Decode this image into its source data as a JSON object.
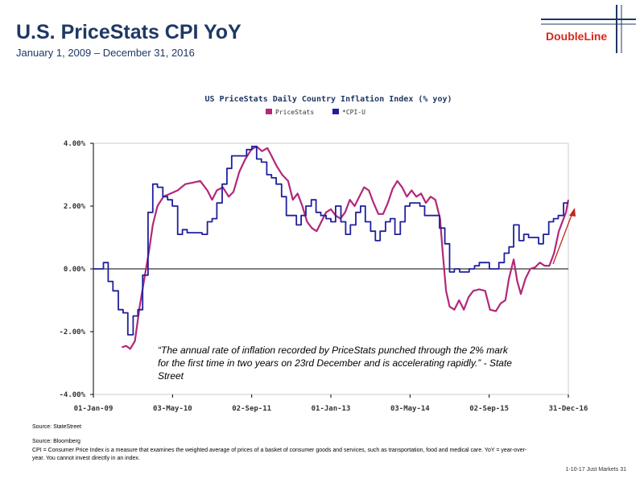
{
  "header": {
    "title": "U.S. PriceStats CPI YoY",
    "subtitle": "January 1, 2009 – December 31, 2016",
    "logo_text": "DoubleLine"
  },
  "colors": {
    "title": "#1f3864",
    "pricestats": "#b3277a",
    "cpi": "#1f1f9e",
    "logo": "#d9261c",
    "arrow": "#c0281c"
  },
  "quote": "“The annual rate of inflation recorded by PriceStats punched through the 2% mark for the first time in two years on 23rd December and is accelerating rapidly.”  - State Street",
  "source_chart": "Source: StateStreet",
  "source_main": "Source: Bloomberg",
  "note": "CPI = Consumer Price Index is a measure that examines the weighted average of prices of a basket of consumer goods and services, such as transportation, food and medical care.  YoY = year-over-year. You cannot invest directly in an index.",
  "footer": "1-10-17 Just Markets   31",
  "chart_data": {
    "type": "line",
    "title": "US PriceStats Daily Country Inflation Index (% yoy)",
    "x_tick_labels": [
      "01-Jan-09",
      "03-May-10",
      "02-Sep-11",
      "01-Jan-13",
      "03-May-14",
      "02-Sep-15",
      "31-Dec-16"
    ],
    "y_tick_labels": [
      "4.00%",
      "2.00%",
      "0.00%",
      "-2.00%",
      "-4.00%"
    ],
    "ylim": [
      -4,
      4
    ],
    "xlim": [
      2009.0,
      2017.0
    ],
    "grid": false,
    "legend": "top-center",
    "series": [
      {
        "name": "PriceStats",
        "color": "#b3277a",
        "points": [
          [
            2009.48,
            -2.5
          ],
          [
            2009.55,
            -2.45
          ],
          [
            2009.62,
            -2.55
          ],
          [
            2009.7,
            -2.3
          ],
          [
            2009.78,
            -1.2
          ],
          [
            2009.86,
            -0.3
          ],
          [
            2009.94,
            0.6
          ],
          [
            2010.0,
            1.4
          ],
          [
            2010.08,
            2.0
          ],
          [
            2010.18,
            2.3
          ],
          [
            2010.3,
            2.4
          ],
          [
            2010.42,
            2.5
          ],
          [
            2010.55,
            2.7
          ],
          [
            2010.68,
            2.75
          ],
          [
            2010.8,
            2.8
          ],
          [
            2010.92,
            2.5
          ],
          [
            2011.0,
            2.2
          ],
          [
            2011.08,
            2.5
          ],
          [
            2011.18,
            2.6
          ],
          [
            2011.28,
            2.3
          ],
          [
            2011.36,
            2.45
          ],
          [
            2011.46,
            3.1
          ],
          [
            2011.56,
            3.5
          ],
          [
            2011.66,
            3.8
          ],
          [
            2011.75,
            3.9
          ],
          [
            2011.84,
            3.75
          ],
          [
            2011.93,
            3.85
          ],
          [
            2012.0,
            3.6
          ],
          [
            2012.08,
            3.3
          ],
          [
            2012.18,
            3.0
          ],
          [
            2012.28,
            2.8
          ],
          [
            2012.36,
            2.2
          ],
          [
            2012.44,
            2.4
          ],
          [
            2012.52,
            2.0
          ],
          [
            2012.6,
            1.5
          ],
          [
            2012.68,
            1.3
          ],
          [
            2012.76,
            1.2
          ],
          [
            2012.84,
            1.5
          ],
          [
            2012.92,
            1.8
          ],
          [
            2013.0,
            1.9
          ],
          [
            2013.08,
            1.7
          ],
          [
            2013.16,
            1.6
          ],
          [
            2013.24,
            1.8
          ],
          [
            2013.32,
            2.2
          ],
          [
            2013.4,
            2.0
          ],
          [
            2013.48,
            2.3
          ],
          [
            2013.56,
            2.6
          ],
          [
            2013.64,
            2.5
          ],
          [
            2013.72,
            2.1
          ],
          [
            2013.8,
            1.75
          ],
          [
            2013.88,
            1.75
          ],
          [
            2013.96,
            2.1
          ],
          [
            2014.04,
            2.55
          ],
          [
            2014.12,
            2.8
          ],
          [
            2014.2,
            2.6
          ],
          [
            2014.28,
            2.3
          ],
          [
            2014.36,
            2.5
          ],
          [
            2014.44,
            2.3
          ],
          [
            2014.52,
            2.4
          ],
          [
            2014.6,
            2.1
          ],
          [
            2014.68,
            2.3
          ],
          [
            2014.76,
            2.2
          ],
          [
            2014.84,
            1.6
          ],
          [
            2014.88,
            0.6
          ],
          [
            2014.94,
            -0.7
          ],
          [
            2015.0,
            -1.2
          ],
          [
            2015.08,
            -1.3
          ],
          [
            2015.16,
            -1.0
          ],
          [
            2015.24,
            -1.3
          ],
          [
            2015.32,
            -0.9
          ],
          [
            2015.4,
            -0.7
          ],
          [
            2015.5,
            -0.65
          ],
          [
            2015.6,
            -0.7
          ],
          [
            2015.68,
            -1.3
          ],
          [
            2015.78,
            -1.35
          ],
          [
            2015.86,
            -1.1
          ],
          [
            2015.94,
            -1.0
          ],
          [
            2016.0,
            -0.3
          ],
          [
            2016.08,
            0.3
          ],
          [
            2016.14,
            -0.4
          ],
          [
            2016.2,
            -0.8
          ],
          [
            2016.28,
            -0.3
          ],
          [
            2016.36,
            0.0
          ],
          [
            2016.44,
            0.05
          ],
          [
            2016.52,
            0.2
          ],
          [
            2016.6,
            0.1
          ],
          [
            2016.68,
            0.1
          ],
          [
            2016.76,
            0.5
          ],
          [
            2016.84,
            1.2
          ],
          [
            2016.9,
            1.5
          ],
          [
            2016.96,
            1.8
          ],
          [
            2017.0,
            2.2
          ]
        ]
      },
      {
        "name": "*CPI-U",
        "color": "#1f1f9e",
        "points": [
          [
            2009.0,
            0.0
          ],
          [
            2009.08,
            0.0
          ],
          [
            2009.17,
            0.2
          ],
          [
            2009.25,
            -0.4
          ],
          [
            2009.33,
            -0.7
          ],
          [
            2009.42,
            -1.3
          ],
          [
            2009.5,
            -1.4
          ],
          [
            2009.58,
            -2.1
          ],
          [
            2009.67,
            -1.5
          ],
          [
            2009.75,
            -1.3
          ],
          [
            2009.83,
            -0.2
          ],
          [
            2009.92,
            1.8
          ],
          [
            2010.0,
            2.7
          ],
          [
            2010.08,
            2.6
          ],
          [
            2010.17,
            2.3
          ],
          [
            2010.25,
            2.2
          ],
          [
            2010.33,
            2.0
          ],
          [
            2010.42,
            1.1
          ],
          [
            2010.5,
            1.25
          ],
          [
            2010.58,
            1.15
          ],
          [
            2010.67,
            1.15
          ],
          [
            2010.75,
            1.15
          ],
          [
            2010.83,
            1.1
          ],
          [
            2010.92,
            1.5
          ],
          [
            2011.0,
            1.6
          ],
          [
            2011.08,
            2.1
          ],
          [
            2011.17,
            2.7
          ],
          [
            2011.25,
            3.2
          ],
          [
            2011.33,
            3.6
          ],
          [
            2011.42,
            3.6
          ],
          [
            2011.5,
            3.6
          ],
          [
            2011.58,
            3.8
          ],
          [
            2011.67,
            3.9
          ],
          [
            2011.75,
            3.5
          ],
          [
            2011.83,
            3.4
          ],
          [
            2011.92,
            3.0
          ],
          [
            2012.0,
            2.9
          ],
          [
            2012.08,
            2.7
          ],
          [
            2012.17,
            2.3
          ],
          [
            2012.25,
            1.7
          ],
          [
            2012.33,
            1.7
          ],
          [
            2012.42,
            1.4
          ],
          [
            2012.5,
            1.7
          ],
          [
            2012.58,
            2.0
          ],
          [
            2012.67,
            2.2
          ],
          [
            2012.75,
            1.8
          ],
          [
            2012.83,
            1.7
          ],
          [
            2012.92,
            1.6
          ],
          [
            2013.0,
            1.5
          ],
          [
            2013.08,
            2.0
          ],
          [
            2013.17,
            1.5
          ],
          [
            2013.25,
            1.1
          ],
          [
            2013.33,
            1.4
          ],
          [
            2013.42,
            1.8
          ],
          [
            2013.5,
            2.0
          ],
          [
            2013.58,
            1.5
          ],
          [
            2013.67,
            1.2
          ],
          [
            2013.75,
            0.9
          ],
          [
            2013.83,
            1.2
          ],
          [
            2013.92,
            1.5
          ],
          [
            2014.0,
            1.6
          ],
          [
            2014.08,
            1.1
          ],
          [
            2014.17,
            1.5
          ],
          [
            2014.25,
            2.0
          ],
          [
            2014.33,
            2.1
          ],
          [
            2014.42,
            2.1
          ],
          [
            2014.5,
            2.0
          ],
          [
            2014.58,
            1.7
          ],
          [
            2014.67,
            1.7
          ],
          [
            2014.75,
            1.7
          ],
          [
            2014.83,
            1.3
          ],
          [
            2014.92,
            0.8
          ],
          [
            2015.0,
            -0.1
          ],
          [
            2015.08,
            0.0
          ],
          [
            2015.17,
            -0.1
          ],
          [
            2015.25,
            -0.1
          ],
          [
            2015.33,
            0.0
          ],
          [
            2015.42,
            0.1
          ],
          [
            2015.5,
            0.2
          ],
          [
            2015.58,
            0.2
          ],
          [
            2015.67,
            0.0
          ],
          [
            2015.75,
            0.0
          ],
          [
            2015.83,
            0.2
          ],
          [
            2015.92,
            0.5
          ],
          [
            2016.0,
            0.7
          ],
          [
            2016.08,
            1.4
          ],
          [
            2016.17,
            0.9
          ],
          [
            2016.25,
            1.1
          ],
          [
            2016.33,
            1.0
          ],
          [
            2016.42,
            1.0
          ],
          [
            2016.5,
            0.8
          ],
          [
            2016.58,
            1.1
          ],
          [
            2016.67,
            1.5
          ],
          [
            2016.75,
            1.6
          ],
          [
            2016.83,
            1.7
          ],
          [
            2016.92,
            2.1
          ],
          [
            2017.0,
            2.1
          ]
        ]
      }
    ]
  }
}
